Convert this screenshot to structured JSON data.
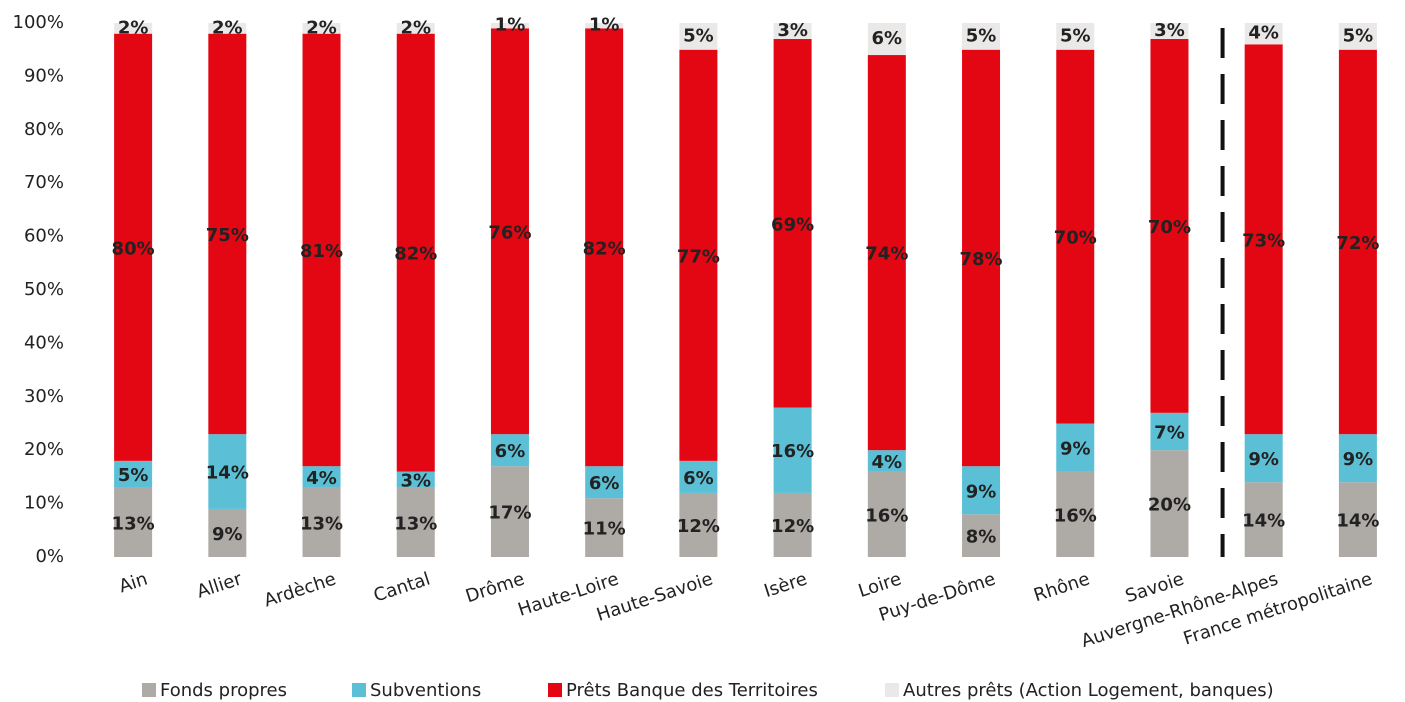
{
  "chart_data": {
    "type": "stacked_bar",
    "categories": [
      "Ain",
      "Allier",
      "Ardèche",
      "Cantal",
      "Drôme",
      "Haute-Loire",
      "Haute-Savoie",
      "Isère",
      "Loire",
      "Puy-de-Dôme",
      "Rhône",
      "Savoie",
      "Auvergne-Rhône-Alpes",
      "France métropolitaine"
    ],
    "series": [
      {
        "name": "Fonds propres",
        "color": "#aeaaa6",
        "values": [
          13,
          9,
          13,
          13,
          17,
          11,
          12,
          12,
          16,
          8,
          16,
          20,
          14,
          14
        ],
        "value_labels": [
          "13%",
          "9%",
          "13%",
          "13%",
          "17%",
          "11%",
          "12%",
          "12%",
          "16%",
          "8%",
          "16%",
          "20%",
          "14%",
          "14%"
        ]
      },
      {
        "name": "Subventions",
        "color": "#5bc0d6",
        "values": [
          5,
          14,
          4,
          3,
          6,
          6,
          6,
          16,
          4,
          9,
          9,
          7,
          9,
          9
        ],
        "value_labels": [
          "5%",
          "14%",
          "4%",
          "3%",
          "6%",
          "6%",
          "6%",
          "16%",
          "4%",
          "9%",
          "9%",
          "7%",
          "9%",
          "9%"
        ]
      },
      {
        "name": "Prêts Banque des Territoires",
        "color": "#e30613",
        "values": [
          80,
          75,
          81,
          82,
          76,
          82,
          77,
          69,
          74,
          78,
          70,
          70,
          73,
          72
        ],
        "value_labels": [
          "80%",
          "75%",
          "81%",
          "82%",
          "76%",
          "82%",
          "77%",
          "69%",
          "74%",
          "78%",
          "70%",
          "70%",
          "73%",
          "72%"
        ]
      },
      {
        "name": "Autres prêts (Action Logement, banques)",
        "color": "#ebe8e8",
        "values": [
          2,
          2,
          2,
          2,
          1,
          1,
          5,
          3,
          6,
          5,
          5,
          3,
          4,
          5
        ],
        "value_labels": [
          "2%",
          "2%",
          "2%",
          "2%",
          "1%",
          "1%",
          "5%",
          "3%",
          "6%",
          "5%",
          "5%",
          "3%",
          "4%",
          "5%"
        ]
      }
    ],
    "ylim": [
      0,
      100
    ],
    "yticks": [
      {
        "value": 0,
        "label": "0%"
      },
      {
        "value": 10,
        "label": "10%"
      },
      {
        "value": 20,
        "label": "20%"
      },
      {
        "value": 30,
        "label": "30%"
      },
      {
        "value": 40,
        "label": "40%"
      },
      {
        "value": 50,
        "label": "50%"
      },
      {
        "value": 60,
        "label": "60%"
      },
      {
        "value": 70,
        "label": "70%"
      },
      {
        "value": 80,
        "label": "80%"
      },
      {
        "value": 90,
        "label": "90%"
      },
      {
        "value": 100,
        "label": "100%"
      }
    ],
    "grid": false,
    "legend": "bottom"
  }
}
